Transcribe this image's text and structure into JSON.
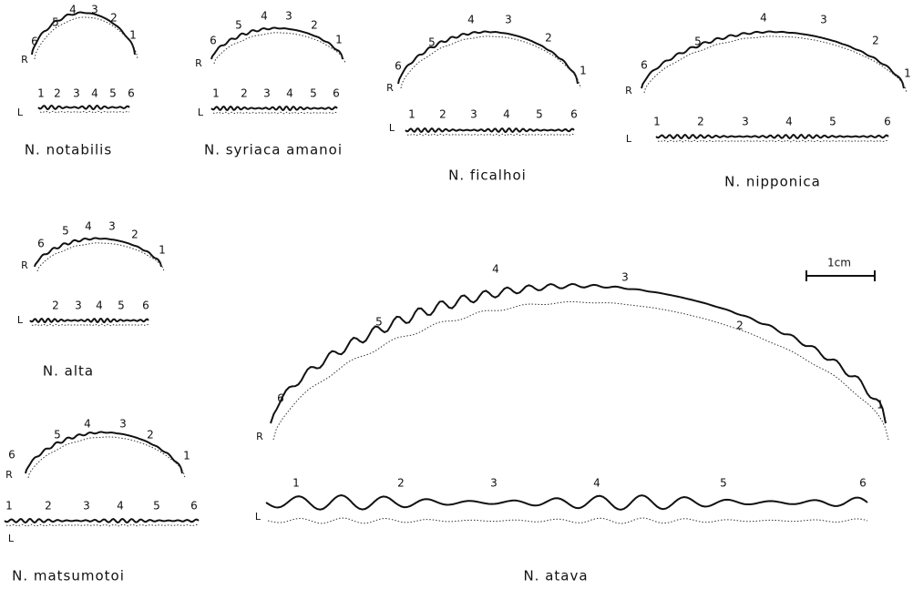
{
  "panels": [
    {
      "name": "N. notabilis",
      "right": {
        "side": "R",
        "numbers": [
          "6",
          "5",
          "4",
          "3",
          "2",
          "1"
        ]
      },
      "left": {
        "side": "L",
        "numbers": [
          "1",
          "2",
          "3",
          "4",
          "5",
          "6"
        ]
      }
    },
    {
      "name": "N. syriaca amanoi",
      "right": {
        "side": "R",
        "numbers": [
          "6",
          "5",
          "4",
          "3",
          "2",
          "1"
        ]
      },
      "left": {
        "side": "L",
        "numbers": [
          "1",
          "2",
          "3",
          "4",
          "5",
          "6"
        ]
      }
    },
    {
      "name": "N. ficalhoi",
      "right": {
        "side": "R",
        "numbers": [
          "6",
          "5",
          "4",
          "3",
          "2",
          "1"
        ]
      },
      "left": {
        "side": "L",
        "numbers": [
          "1",
          "2",
          "3",
          "4",
          "5",
          "6"
        ]
      }
    },
    {
      "name": "N. nipponica",
      "right": {
        "side": "R",
        "numbers": [
          "6",
          "5",
          "4",
          "3",
          "2",
          "1"
        ]
      },
      "left": {
        "side": "L",
        "numbers": [
          "1",
          "2",
          "3",
          "4",
          "5",
          "6"
        ]
      }
    },
    {
      "name": "N. alta",
      "right": {
        "side": "R",
        "numbers": [
          "6",
          "5",
          "4",
          "3",
          "2",
          "1"
        ]
      },
      "left": {
        "side": "L",
        "numbers": [
          "2",
          "3",
          "4",
          "5",
          "6"
        ]
      }
    },
    {
      "name": "N. matsumotoi",
      "right": {
        "side": "R",
        "numbers": [
          "6",
          "5",
          "4",
          "3",
          "2",
          "1"
        ]
      },
      "left": {
        "side": "L",
        "numbers": [
          "1",
          "2",
          "3",
          "4",
          "5",
          "6"
        ]
      }
    },
    {
      "name": "N. atava",
      "right": {
        "side": "R",
        "numbers": [
          "6",
          "5",
          "4",
          "3",
          "2",
          "1"
        ]
      },
      "left": {
        "side": "L",
        "numbers": [
          "1",
          "2",
          "3",
          "4",
          "5",
          "6"
        ]
      }
    }
  ],
  "scale": "1cm"
}
